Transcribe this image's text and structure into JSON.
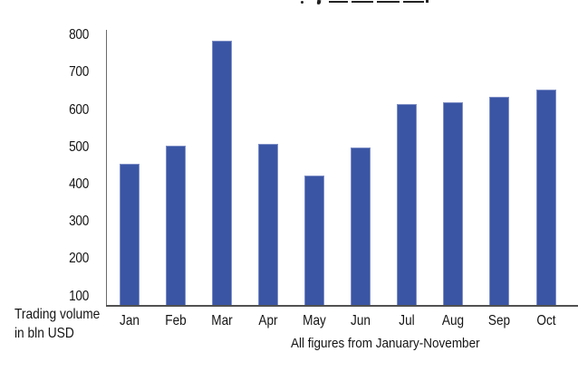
{
  "chart_data": {
    "type": "bar",
    "title_cropped": true,
    "categories": [
      "Jan",
      "Feb",
      "Mar",
      "Apr",
      "May",
      "Jun",
      "Jul",
      "Aug",
      "Sep",
      "Oct"
    ],
    "values": [
      455,
      505,
      785,
      510,
      425,
      500,
      615,
      620,
      635,
      655
    ],
    "xlabel": "",
    "ylabel": "Trading volume in bln USD",
    "ylabel_line1": "Trading volume",
    "ylabel_line2": "in bln USD",
    "footnote": "All figures from January-November",
    "yticks": [
      800,
      700,
      600,
      500,
      400,
      300,
      200,
      100
    ],
    "ylim": [
      75,
      813
    ],
    "grid": false,
    "legend": false
  },
  "colors": {
    "bar": "#3a55a4",
    "bar_border": "#7e8ec5",
    "axis": "#5a5a5a",
    "text": "#141414",
    "background": "#ffffff"
  }
}
